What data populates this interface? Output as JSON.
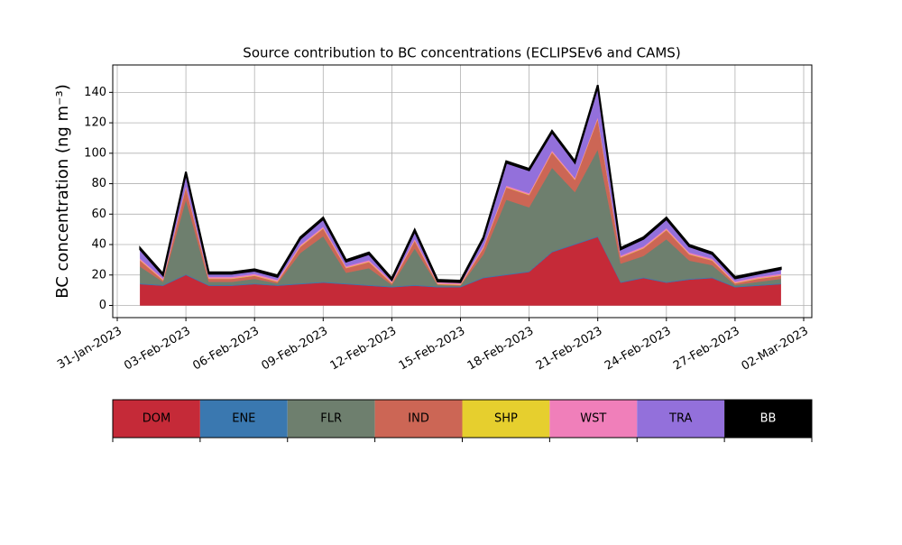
{
  "chart_data": {
    "type": "stacked_area",
    "title": "Source contribution to BC concentrations (ECLIPSEv6 and CAMS)",
    "y_label": "BC concentration (ng m⁻³)",
    "x": [
      "2023-02-01",
      "2023-02-02",
      "2023-02-03",
      "2023-02-04",
      "2023-02-05",
      "2023-02-06",
      "2023-02-07",
      "2023-02-08",
      "2023-02-09",
      "2023-02-10",
      "2023-02-11",
      "2023-02-12",
      "2023-02-13",
      "2023-02-14",
      "2023-02-15",
      "2023-02-16",
      "2023-02-17",
      "2023-02-18",
      "2023-02-19",
      "2023-02-20",
      "2023-02-21",
      "2023-02-22",
      "2023-02-23",
      "2023-02-24",
      "2023-02-25",
      "2023-02-26",
      "2023-02-27",
      "2023-02-28",
      "2023-03-01"
    ],
    "series": [
      {
        "name": "DOM",
        "color": "#c52a38",
        "values": [
          14,
          13,
          20,
          13,
          13,
          14,
          13,
          14,
          15,
          14,
          13,
          12,
          13,
          12,
          12,
          18,
          20,
          22,
          35,
          40,
          45,
          15,
          18,
          15,
          17,
          18,
          12,
          13,
          14
        ]
      },
      {
        "name": "ENE",
        "color": "#3a78b0",
        "values": [
          0.5,
          0.5,
          0.5,
          0.5,
          0.5,
          0.5,
          0.5,
          0.5,
          0.5,
          0.5,
          0.5,
          0.5,
          0.5,
          0.5,
          0.5,
          0.5,
          0.5,
          0.5,
          0.5,
          0.5,
          0.5,
          0.5,
          0.5,
          0.5,
          0.5,
          0.5,
          0.5,
          0.5,
          0.5
        ]
      },
      {
        "name": "FLR",
        "color": "#6e7f6e",
        "values": [
          11,
          2,
          49,
          2,
          2,
          3,
          1,
          20,
          30,
          7,
          11,
          1,
          24,
          1,
          0.5,
          15,
          49,
          42,
          55,
          34,
          57,
          12,
          14,
          28,
          12,
          8,
          1,
          2,
          3
        ]
      },
      {
        "name": "IND",
        "color": "#cc6655",
        "values": [
          4,
          1,
          8,
          2,
          2,
          2,
          1,
          4,
          5,
          3,
          4,
          1,
          5,
          0.5,
          0.5,
          4,
          8,
          8,
          10,
          8,
          20,
          4,
          5,
          6,
          4,
          3,
          1,
          2,
          2
        ]
      },
      {
        "name": "SHP",
        "color": "#e6cf2e",
        "values": [
          0.3,
          0.3,
          0.3,
          0.3,
          0.3,
          0.3,
          0.3,
          0.3,
          0.3,
          0.3,
          0.3,
          0.3,
          0.3,
          0.3,
          0.3,
          0.3,
          0.3,
          0.3,
          0.3,
          0.3,
          0.3,
          0.3,
          0.3,
          0.3,
          0.3,
          0.3,
          0.3,
          0.3,
          0.3
        ]
      },
      {
        "name": "WST",
        "color": "#f07fba",
        "values": [
          1,
          1,
          1,
          1,
          1,
          1,
          1,
          1,
          1,
          1,
          1,
          1,
          1,
          1,
          1,
          1,
          1,
          1,
          1,
          1,
          1,
          1,
          1,
          1,
          1,
          1,
          1,
          1,
          1
        ]
      },
      {
        "name": "TRA",
        "color": "#9370db",
        "values": [
          6,
          2,
          8,
          2,
          2,
          2,
          2,
          4,
          5,
          3,
          4,
          1,
          5,
          0.5,
          0.5,
          5,
          15,
          15,
          12,
          10,
          20,
          4,
          5,
          6,
          4,
          3,
          2,
          2,
          3
        ]
      },
      {
        "name": "BB",
        "color": "#000000",
        "values": [
          1,
          1,
          1,
          1,
          1,
          1,
          1,
          1,
          1,
          1,
          1,
          1,
          1,
          1,
          1,
          1,
          1,
          1,
          1,
          1,
          1,
          1,
          1,
          1,
          1,
          1,
          1,
          1,
          1
        ]
      }
    ],
    "xlim": [
      "2023-01-31",
      "2023-03-02"
    ],
    "xticks": [
      {
        "value": "2023-01-31",
        "label": "31-Jan-2023"
      },
      {
        "value": "2023-02-03",
        "label": "03-Feb-2023"
      },
      {
        "value": "2023-02-06",
        "label": "06-Feb-2023"
      },
      {
        "value": "2023-02-09",
        "label": "09-Feb-2023"
      },
      {
        "value": "2023-02-12",
        "label": "12-Feb-2023"
      },
      {
        "value": "2023-02-15",
        "label": "15-Feb-2023"
      },
      {
        "value": "2023-02-18",
        "label": "18-Feb-2023"
      },
      {
        "value": "2023-02-21",
        "label": "21-Feb-2023"
      },
      {
        "value": "2023-02-24",
        "label": "24-Feb-2023"
      },
      {
        "value": "2023-02-27",
        "label": "27-Feb-2023"
      },
      {
        "value": "2023-03-02",
        "label": "02-Mar-2023"
      }
    ],
    "ylim": [
      -8,
      158
    ],
    "yticks": [
      0,
      20,
      40,
      60,
      80,
      100,
      120,
      140
    ],
    "grid": true
  }
}
